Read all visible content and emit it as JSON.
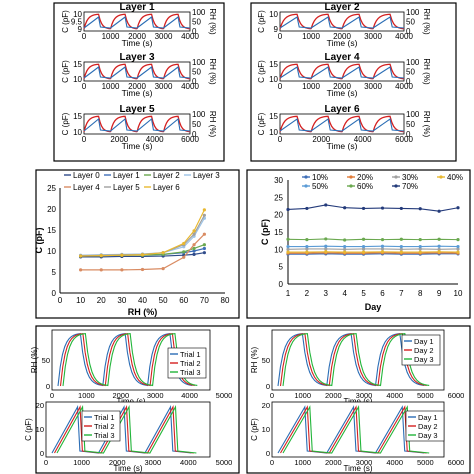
{
  "colors": {
    "blue": "#2a6db5",
    "red": "#d42020",
    "green": "#22b53a",
    "frame": "#000000",
    "navy": "#233a7a",
    "orange": "#c8704a"
  },
  "chart_data": [
    {
      "type": "line",
      "title": "Layer 1",
      "xlabel": "Time (s)",
      "ylabel": "C (pF)",
      "y2label": "RH (%)",
      "xlim": [
        0,
        4000
      ],
      "xticks": [
        "0",
        "1000",
        "2000",
        "3000",
        "4000"
      ],
      "ylim": [
        9,
        10
      ],
      "yticks": [
        "9",
        "9.5",
        "10"
      ],
      "y2lim": [
        0,
        100
      ],
      "y2ticks": [
        "0",
        "50",
        "100"
      ],
      "series": [
        {
          "axis": "C",
          "color": "blue"
        },
        {
          "axis": "RH",
          "color": "red"
        }
      ]
    },
    {
      "type": "line",
      "title": "Layer 2",
      "xlabel": "Time (s)",
      "ylabel": "C (pF)",
      "y2label": "RH (%)",
      "xlim": [
        0,
        4000
      ],
      "xticks": [
        "0",
        "1000",
        "2000",
        "3000",
        "4000"
      ],
      "ylim": [
        9,
        10
      ],
      "yticks": [
        "9",
        "10"
      ],
      "y2lim": [
        0,
        100
      ],
      "y2ticks": [
        "0",
        "50",
        "100"
      ],
      "series": [
        {
          "axis": "C",
          "color": "blue"
        },
        {
          "axis": "RH",
          "color": "red"
        }
      ]
    },
    {
      "type": "line",
      "title": "Layer 3",
      "xlabel": "Time (s)",
      "ylabel": "C (pF)",
      "y2label": "RH (%)",
      "xlim": [
        0,
        4000
      ],
      "xticks": [
        "0",
        "1000",
        "2000",
        "3000",
        "4000"
      ],
      "ylim": [
        10,
        15
      ],
      "yticks": [
        "10",
        "15"
      ],
      "y2lim": [
        0,
        100
      ],
      "y2ticks": [
        "0",
        "50",
        "100"
      ],
      "series": [
        {
          "axis": "C",
          "color": "blue"
        },
        {
          "axis": "RH",
          "color": "red"
        }
      ]
    },
    {
      "type": "line",
      "title": "Layer 4",
      "xlabel": "Time (s)",
      "ylabel": "C (pF)",
      "y2label": "RH (%)",
      "xlim": [
        0,
        4000
      ],
      "xticks": [
        "0",
        "1000",
        "2000",
        "3000",
        "4000"
      ],
      "ylim": [
        10,
        15
      ],
      "yticks": [
        "10",
        "15"
      ],
      "y2lim": [
        0,
        100
      ],
      "y2ticks": [
        "0",
        "50",
        "100"
      ],
      "series": [
        {
          "axis": "C",
          "color": "blue"
        },
        {
          "axis": "RH",
          "color": "red"
        }
      ]
    },
    {
      "type": "line",
      "title": "Layer 5",
      "xlabel": "Time (s)",
      "ylabel": "C (pF)",
      "y2label": "RH (%)",
      "xlim": [
        0,
        6000
      ],
      "xticks": [
        "0",
        "2000",
        "4000",
        "6000"
      ],
      "ylim": [
        10,
        15
      ],
      "yticks": [
        "10",
        "15"
      ],
      "y2lim": [
        0,
        100
      ],
      "y2ticks": [
        "0",
        "50",
        "100"
      ],
      "series": [
        {
          "axis": "C",
          "color": "blue"
        },
        {
          "axis": "RH",
          "color": "red"
        }
      ]
    },
    {
      "type": "line",
      "title": "Layer 6",
      "xlabel": "Time (s)",
      "ylabel": "C (pF)",
      "y2label": "RH (%)",
      "xlim": [
        0,
        6000
      ],
      "xticks": [
        "0",
        "2000",
        "4000",
        "6000"
      ],
      "ylim": [
        10,
        15
      ],
      "yticks": [
        "10",
        "15"
      ],
      "y2lim": [
        0,
        100
      ],
      "y2ticks": [
        "0",
        "50",
        "100"
      ],
      "series": [
        {
          "axis": "C",
          "color": "blue"
        },
        {
          "axis": "RH",
          "color": "red"
        }
      ]
    },
    {
      "type": "line",
      "xlabel": "RH (%)",
      "ylabel": "C (pF)",
      "xlim": [
        0,
        80
      ],
      "ylim": [
        0,
        25
      ],
      "xticks": [
        "0",
        "10",
        "20",
        "30",
        "40",
        "50",
        "60",
        "70",
        "80"
      ],
      "yticks": [
        "0",
        "5",
        "10",
        "15",
        "20",
        "25"
      ],
      "legend": "top-left",
      "x": [
        10,
        20,
        30,
        40,
        50,
        60,
        65,
        70
      ],
      "series": [
        {
          "name": "Layer 0",
          "color": "#2f4b8a",
          "values": [
            8.6,
            8.6,
            8.7,
            8.7,
            8.8,
            9.0,
            9.2,
            9.6
          ]
        },
        {
          "name": "Layer 1",
          "color": "#3f6fb8",
          "values": [
            8.9,
            9.0,
            9.0,
            9.1,
            9.2,
            9.6,
            10.0,
            10.6
          ]
        },
        {
          "name": "Layer 2",
          "color": "#6aa84f",
          "values": [
            8.8,
            8.9,
            9.0,
            9.0,
            9.2,
            9.8,
            10.6,
            11.5
          ]
        },
        {
          "name": "Layer 3",
          "color": "#9dc3e6",
          "values": [
            9.0,
            9.1,
            9.2,
            9.3,
            9.6,
            11.0,
            13.5,
            17.8
          ]
        },
        {
          "name": "Layer 4",
          "color": "#d98b62",
          "values": [
            5.5,
            5.5,
            5.5,
            5.6,
            5.8,
            8.5,
            11.5,
            14.0
          ]
        },
        {
          "name": "Layer 5",
          "color": "#a0a0a0",
          "values": [
            8.9,
            9.0,
            9.1,
            9.2,
            9.6,
            11.5,
            14.0,
            18.5
          ]
        },
        {
          "name": "Layer 6",
          "color": "#e8b830",
          "values": [
            8.8,
            8.9,
            9.0,
            9.1,
            9.6,
            11.8,
            14.8,
            19.8
          ]
        }
      ]
    },
    {
      "type": "line",
      "xlabel": "Day",
      "ylabel": "C (pF)",
      "xlim": [
        1,
        10
      ],
      "ylim": [
        0,
        30
      ],
      "xticks": [
        "1",
        "2",
        "3",
        "4",
        "5",
        "6",
        "7",
        "8",
        "9",
        "10"
      ],
      "yticks": [
        "0",
        "5",
        "10",
        "15",
        "20",
        "25",
        "30"
      ],
      "legend": "top",
      "x": [
        1,
        2,
        3,
        4,
        5,
        6,
        7,
        8,
        9,
        10
      ],
      "series": [
        {
          "name": "10%",
          "color": "#3f6fb8",
          "values": [
            8.6,
            8.6,
            8.7,
            8.6,
            8.6,
            8.7,
            8.6,
            8.6,
            8.7,
            8.7
          ]
        },
        {
          "name": "20%",
          "color": "#e07b39",
          "values": [
            8.9,
            8.9,
            9.0,
            8.9,
            8.9,
            9.0,
            8.9,
            8.9,
            9.0,
            8.9
          ]
        },
        {
          "name": "30%",
          "color": "#a0a0a0",
          "values": [
            10.0,
            10.1,
            10.1,
            10.0,
            10.1,
            10.1,
            10.0,
            10.1,
            10.0,
            10.1
          ]
        },
        {
          "name": "40%",
          "color": "#e8b830",
          "values": [
            9.2,
            9.2,
            9.3,
            9.2,
            9.2,
            9.3,
            9.2,
            9.2,
            9.3,
            9.2
          ]
        },
        {
          "name": "50%",
          "color": "#5b9bd5",
          "values": [
            10.8,
            10.8,
            10.9,
            10.8,
            10.8,
            10.9,
            10.8,
            10.8,
            10.9,
            10.8
          ]
        },
        {
          "name": "60%",
          "color": "#6aa84f",
          "values": [
            12.9,
            12.8,
            13.0,
            12.7,
            12.9,
            12.8,
            12.9,
            12.8,
            12.9,
            12.8
          ]
        },
        {
          "name": "70%",
          "color": "#233a7a",
          "values": [
            21.5,
            21.8,
            22.8,
            22.0,
            21.8,
            21.9,
            21.8,
            21.7,
            21.0,
            22.0
          ]
        }
      ]
    },
    {
      "type": "line",
      "xlabel": "Time (s)",
      "ylabel": "RH (%)",
      "xlim": [
        0,
        5000
      ],
      "ylim": [
        0,
        100
      ],
      "xticks": [
        "0",
        "1000",
        "2000",
        "3000",
        "4000",
        "5000"
      ],
      "yticks": [
        "0",
        "50"
      ],
      "legend": "right",
      "series": [
        {
          "name": "Trial 1",
          "color": "blue"
        },
        {
          "name": "Trial 2",
          "color": "red"
        },
        {
          "name": "Trial 3",
          "color": "green"
        }
      ]
    },
    {
      "type": "line",
      "xlabel": "Time (s)",
      "ylabel": "RH (%)",
      "xlim": [
        0,
        6000
      ],
      "ylim": [
        0,
        100
      ],
      "xticks": [
        "0",
        "1000",
        "2000",
        "3000",
        "4000",
        "5000",
        "6000"
      ],
      "yticks": [
        "0",
        "50"
      ],
      "legend": "top-right",
      "series": [
        {
          "name": "Day 1",
          "color": "blue"
        },
        {
          "name": "Day 2",
          "color": "red"
        },
        {
          "name": "Day 3",
          "color": "green"
        }
      ]
    },
    {
      "type": "line",
      "xlabel": "Time (s)",
      "ylabel": "C (pF)",
      "xlim": [
        0,
        5000
      ],
      "ylim": [
        0,
        20
      ],
      "xticks": [
        "0",
        "1000",
        "2000",
        "3000",
        "4000",
        "5000"
      ],
      "yticks": [
        "0",
        "10",
        "20"
      ],
      "legend": "top-left",
      "series": [
        {
          "name": "Trial 1",
          "color": "blue"
        },
        {
          "name": "Trial 2",
          "color": "red"
        },
        {
          "name": "Trial 3",
          "color": "green"
        }
      ]
    },
    {
      "type": "line",
      "xlabel": "Time (s)",
      "ylabel": "C (pF)",
      "xlim": [
        0,
        6000
      ],
      "ylim": [
        0,
        20
      ],
      "xticks": [
        "0",
        "1000",
        "2000",
        "3000",
        "4000",
        "5000",
        "6000"
      ],
      "yticks": [
        "0",
        "10",
        "20"
      ],
      "legend": "right",
      "series": [
        {
          "name": "Day 1",
          "color": "blue"
        },
        {
          "name": "Day 2",
          "color": "red"
        },
        {
          "name": "Day 3",
          "color": "green"
        }
      ]
    }
  ]
}
